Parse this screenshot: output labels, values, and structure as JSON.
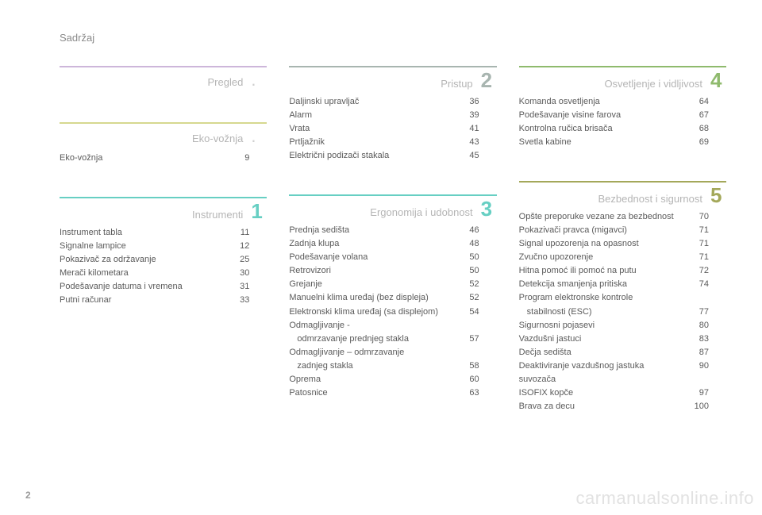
{
  "header": "Sadržaj",
  "page_number": "2",
  "watermark": "carmanualsonline.info",
  "columns": [
    {
      "sections": [
        {
          "title": "Pregled",
          "num": ".",
          "num_style": "dot",
          "bar_color": "#cdb6da",
          "title_color": "#b5b5b5",
          "entries": []
        },
        {
          "title": "Eko-vožnja",
          "num": ".",
          "num_style": "dot",
          "bar_color": "#d6d88f",
          "title_color": "#b5b5b5",
          "entries": [
            {
              "label": "Eko-vožnja",
              "page": "9"
            }
          ]
        },
        {
          "title": "Instrumenti",
          "num": "1",
          "num_style": "num",
          "bar_color": "#67cfc3",
          "num_color": "#67cfc3",
          "title_color": "#b5b5b5",
          "entries": [
            {
              "label": "Instrument tabla",
              "page": "11"
            },
            {
              "label": "Signalne lampice",
              "page": "12"
            },
            {
              "label": "Pokazivač za održavanje",
              "page": "25"
            },
            {
              "label": "Merači kilometara",
              "page": "30"
            },
            {
              "label": "Podešavanje datuma i vremena",
              "page": "31"
            },
            {
              "label": "Putni računar",
              "page": "33"
            }
          ]
        }
      ]
    },
    {
      "sections": [
        {
          "title": "Pristup",
          "num": "2",
          "num_style": "num",
          "bar_color": "#a8b5b0",
          "num_color": "#a8b5b0",
          "title_color": "#b5b5b5",
          "entries": [
            {
              "label": "Daljinski upravljač",
              "page": "36"
            },
            {
              "label": "Alarm",
              "page": "39"
            },
            {
              "label": "Vrata",
              "page": "41"
            },
            {
              "label": "Prtljažnik",
              "page": "43"
            },
            {
              "label": "Električni podizači stakala",
              "page": "45"
            }
          ]
        },
        {
          "title": "Ergonomija i udobnost",
          "num": "3",
          "num_style": "num",
          "bar_color": "#67cfc3",
          "num_color": "#67cfc3",
          "title_color": "#b5b5b5",
          "entries": [
            {
              "label": "Prednja sedišta",
              "page": "46"
            },
            {
              "label": "Zadnja klupa",
              "page": "48"
            },
            {
              "label": "Podešavanje volana",
              "page": "50"
            },
            {
              "label": "Retrovizori",
              "page": "50"
            },
            {
              "label": "Grejanje",
              "page": "52"
            },
            {
              "label": "Manuelni klima uređaj (bez displeja)",
              "page": "52"
            },
            {
              "label": "Elektronski klima uređaj (sa displejom)",
              "page": "54"
            },
            {
              "label": "Odmagljivanje -",
              "sub": "odmrzavanje prednjeg stakla",
              "page": "57"
            },
            {
              "label": "Odmagljivanje – odmrzavanje",
              "sub": "zadnjeg stakla",
              "page": "58"
            },
            {
              "label": "Oprema",
              "page": "60"
            },
            {
              "label": "Patosnice",
              "page": "63"
            }
          ]
        }
      ]
    },
    {
      "sections": [
        {
          "title": "Osvetljenje i vidljivost",
          "num": "4",
          "num_style": "num",
          "bar_color": "#8fba6d",
          "num_color": "#8fba6d",
          "title_color": "#b5b5b5",
          "entries": [
            {
              "label": "Komanda osvetljenja",
              "page": "64"
            },
            {
              "label": "Podešavanje visine farova",
              "page": "67"
            },
            {
              "label": "Kontrolna ručica brisača",
              "page": "68"
            },
            {
              "label": "Svetla kabine",
              "page": "69"
            }
          ]
        },
        {
          "title": "Bezbednost i sigurnost",
          "num": "5",
          "num_style": "num",
          "bar_color": "#a4a85a",
          "num_color": "#a4a85a",
          "title_color": "#b5b5b5",
          "entries": [
            {
              "label": "Opšte preporuke vezane za bezbednost",
              "page": "70"
            },
            {
              "label": "Pokazivači pravca (migavci)",
              "page": "71"
            },
            {
              "label": "Signal upozorenja na opasnost",
              "page": "71"
            },
            {
              "label": "Zvučno upozorenje",
              "page": "71"
            },
            {
              "label": "Hitna pomoć ili pomoć na putu",
              "page": "72"
            },
            {
              "label": "Detekcija smanjenja pritiska",
              "page": "74"
            },
            {
              "label": "Program elektronske kontrole",
              "sub": "stabilnosti (ESC)",
              "page": "77"
            },
            {
              "label": "Sigurnosni pojasevi",
              "page": "80"
            },
            {
              "label": "Vazdušni jastuci",
              "page": "83"
            },
            {
              "label": "Dečja sedišta",
              "page": "87"
            },
            {
              "label": "Deaktiviranje vazdušnog jastuka suvozača",
              "page": "90"
            },
            {
              "label": "ISOFIX kopče",
              "page": "97"
            },
            {
              "label": "Brava za decu",
              "page": "100"
            }
          ]
        }
      ]
    }
  ]
}
